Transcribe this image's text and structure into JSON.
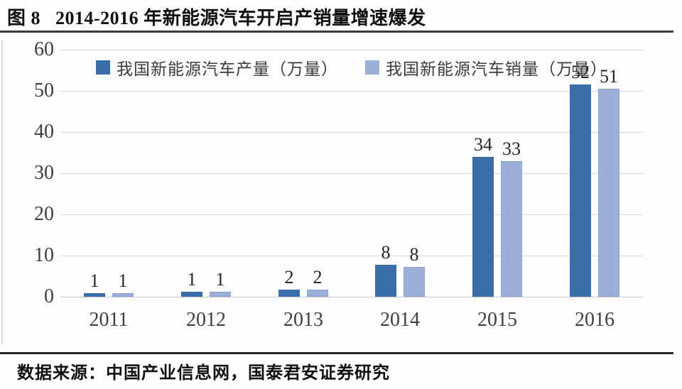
{
  "header": {
    "title": "图 8   2014-2016 年新能源汽车开启产销量增速爆发"
  },
  "footer": {
    "source": "数据来源：中国产业信息网，国泰君安证券研究"
  },
  "colors": {
    "production": "#3A6CA6",
    "sales": "#9CAFD6",
    "gridline": "#D9D9D9",
    "axis_line": "#C8C8C8",
    "axis_text": "#3F3F3F",
    "label_text": "#262626"
  },
  "chart_data": {
    "type": "bar",
    "title": "2014-2016 年新能源汽车开启产销量增速爆发",
    "categories": [
      "2011",
      "2012",
      "2013",
      "2014",
      "2015",
      "2016"
    ],
    "series": [
      {
        "name": "我国新能源汽车产量（万量）",
        "color": "#3A6CA6",
        "values": [
          1,
          1,
          2,
          8,
          34,
          52
        ],
        "labels": [
          "1",
          "1",
          "2",
          "8",
          "34",
          "52"
        ],
        "visual_values": [
          0.8,
          1.2,
          1.8,
          7.7,
          34,
          51.5
        ]
      },
      {
        "name": "我国新能源汽车销量（万量）",
        "color": "#9CAFD6",
        "values": [
          1,
          1,
          2,
          8,
          33,
          51
        ],
        "labels": [
          "1",
          "1",
          "2",
          "8",
          "33",
          "51"
        ],
        "visual_values": [
          0.8,
          1.2,
          1.8,
          7.3,
          33,
          50.5
        ]
      }
    ],
    "xlabel": "",
    "ylabel": "",
    "ylim": [
      0,
      60
    ],
    "yticks": [
      0,
      10,
      20,
      30,
      40,
      50,
      60
    ],
    "grid": true,
    "legend_position": "top"
  }
}
